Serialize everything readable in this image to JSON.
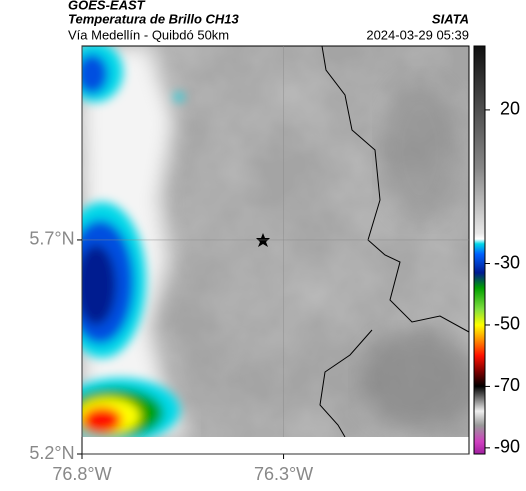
{
  "header": {
    "title": "GOES-EAST",
    "product": "Temperatura de Brillo CH13",
    "route": "Vía Medellín - Quibdó 50km",
    "source": "SIATA",
    "timestamp": "2024-03-29 05:39"
  },
  "map": {
    "xlim": [
      -76.8,
      -75.84
    ],
    "ylim": [
      5.2,
      6.153
    ],
    "xticks": [
      {
        "value": -76.8,
        "label": "76.8°W"
      },
      {
        "value": -76.3,
        "label": "76.3°W"
      }
    ],
    "yticks": [
      {
        "value": 5.2,
        "label": "5.2°N"
      },
      {
        "value": 5.7,
        "label": "5.7°N"
      }
    ]
  },
  "colorbar": {
    "lim": [
      40.8,
      -92
    ],
    "ticks": [
      20,
      -30,
      -50,
      -70,
      -90
    ]
  }
}
